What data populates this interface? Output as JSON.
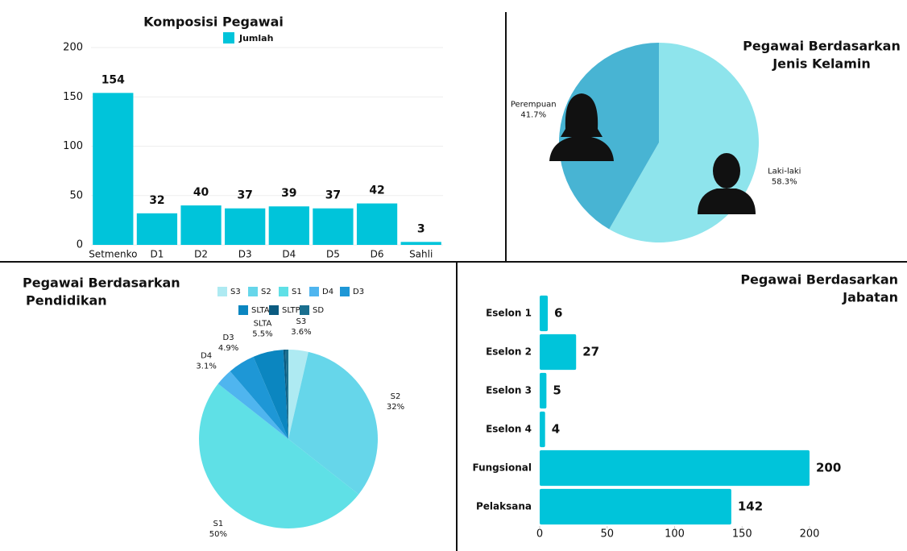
{
  "chart_data": [
    {
      "type": "bar",
      "title": "Komposisi Pegawai",
      "legend": "Jumlah",
      "color": "#00c4da",
      "categories": [
        "Setmenko",
        "D1",
        "D2",
        "D3",
        "D4",
        "D5",
        "D6",
        "Sahli"
      ],
      "values": [
        154,
        32,
        40,
        37,
        39,
        37,
        42,
        3
      ],
      "ylim": [
        0,
        200
      ],
      "yticks": [
        0,
        50,
        100,
        150,
        200
      ],
      "grid": true
    },
    {
      "type": "pie",
      "title": [
        "Pegawai Berdasarkan",
        "Jenis Kelamin"
      ],
      "categories": [
        "Laki-laki",
        "Perempuan"
      ],
      "values": [
        58.3,
        41.7
      ],
      "value_labels": [
        "58.3%",
        "41.7%"
      ],
      "colors": [
        "#8ee4ec",
        "#48b4d3"
      ]
    },
    {
      "type": "pie",
      "title": [
        "Pegawai Berdasarkan",
        "Pendidikan"
      ],
      "categories": [
        "S3",
        "S2",
        "S1",
        "D4",
        "D3",
        "SLTA",
        "SLTP",
        "SD"
      ],
      "values": [
        3.6,
        32,
        50,
        3.1,
        4.9,
        5.5,
        0.4,
        0.5
      ],
      "value_labels": [
        "3.6%",
        "32%",
        "50%",
        "3.1%",
        "4.9%",
        "5.5%",
        null,
        null
      ],
      "colors": [
        "#aeeaf2",
        "#66d6ea",
        "#5fe0e6",
        "#4fb5ef",
        "#1e97d6",
        "#0b86c0",
        "#0b5b80",
        "#1a6f8f"
      ],
      "legend": true
    },
    {
      "type": "hbar",
      "title": [
        "Pegawai Berdasarkan",
        "Jabatan"
      ],
      "color": "#00c4da",
      "categories": [
        "Eselon 1",
        "Eselon 2",
        "Eselon 3",
        "Eselon 4",
        "Fungsional",
        "Pelaksana"
      ],
      "values": [
        6,
        27,
        5,
        4,
        200,
        142
      ],
      "xlim": [
        0,
        200
      ],
      "xticks": [
        0,
        50,
        100,
        150,
        200
      ]
    }
  ]
}
